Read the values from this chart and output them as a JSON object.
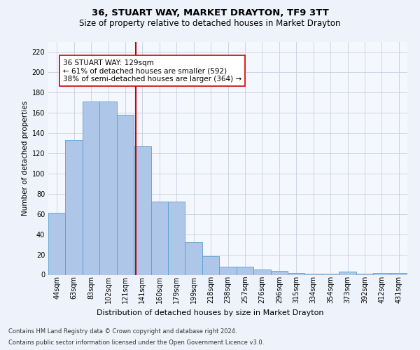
{
  "title1": "36, STUART WAY, MARKET DRAYTON, TF9 3TT",
  "title2": "Size of property relative to detached houses in Market Drayton",
  "xlabel": "Distribution of detached houses by size in Market Drayton",
  "ylabel": "Number of detached properties",
  "footnote1": "Contains HM Land Registry data © Crown copyright and database right 2024.",
  "footnote2": "Contains public sector information licensed under the Open Government Licence v3.0.",
  "annotation_line1": "36 STUART WAY: 129sqm",
  "annotation_line2": "← 61% of detached houses are smaller (592)",
  "annotation_line3": "38% of semi-detached houses are larger (364) →",
  "bar_labels": [
    "44sqm",
    "63sqm",
    "83sqm",
    "102sqm",
    "121sqm",
    "141sqm",
    "160sqm",
    "179sqm",
    "199sqm",
    "218sqm",
    "238sqm",
    "257sqm",
    "276sqm",
    "296sqm",
    "315sqm",
    "334sqm",
    "354sqm",
    "373sqm",
    "392sqm",
    "412sqm",
    "431sqm"
  ],
  "bar_values": [
    61,
    133,
    171,
    171,
    158,
    127,
    72,
    72,
    32,
    18,
    8,
    8,
    5,
    4,
    2,
    1,
    1,
    3,
    1,
    2,
    2
  ],
  "bar_color": "#aec6e8",
  "bar_edge_color": "#5a9fd4",
  "ref_line_x": 4.62,
  "ref_line_color": "#cc0000",
  "ylim": [
    0,
    230
  ],
  "yticks": [
    0,
    20,
    40,
    60,
    80,
    100,
    120,
    140,
    160,
    180,
    200,
    220
  ],
  "bg_color": "#eef2fb",
  "plot_bg_color": "#f5f7fe",
  "grid_color": "#c8cfe0",
  "title1_fontsize": 9.5,
  "title2_fontsize": 8.5,
  "ylabel_fontsize": 7.5,
  "xlabel_fontsize": 8,
  "tick_fontsize": 7,
  "footnote_fontsize": 6,
  "ann_fontsize": 7.5
}
